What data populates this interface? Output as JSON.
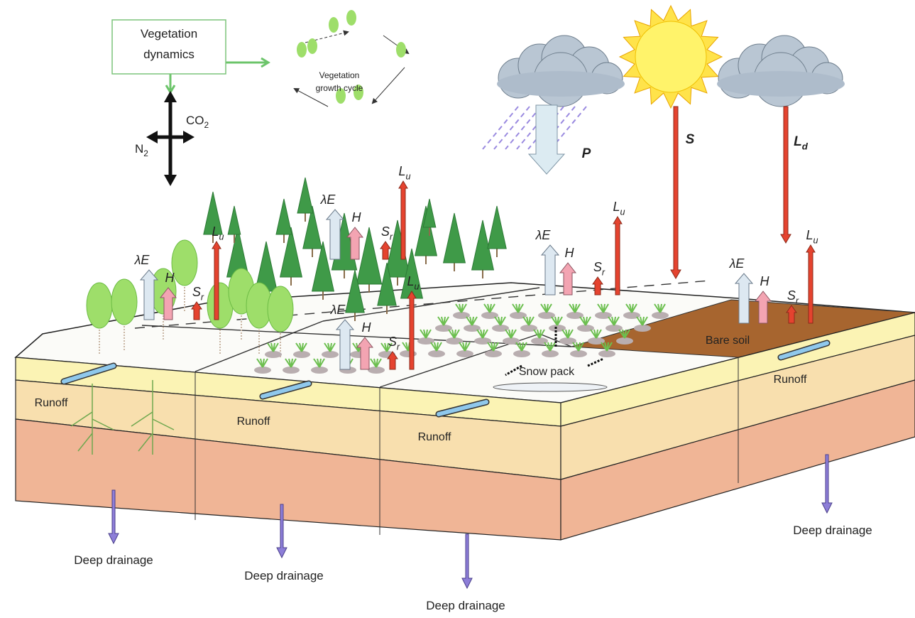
{
  "vegetation_box": {
    "lines": [
      "Vegetation",
      "dynamics"
    ]
  },
  "growth_cycle": {
    "lines": [
      "Vegetation",
      "growth cycle"
    ]
  },
  "gases": [
    {
      "base": "CO",
      "sub": "2"
    },
    {
      "base": "N",
      "sub": "2"
    }
  ],
  "atmospheric_fluxes": [
    {
      "base": "P"
    },
    {
      "base": "S"
    },
    {
      "base": "L",
      "sub": "d"
    }
  ],
  "tiles": [
    {
      "fluxes": [
        {
          "base": "λE"
        },
        {
          "base": "H"
        },
        {
          "base": "S",
          "sub": "r"
        },
        {
          "base": "L",
          "sub": "u"
        }
      ]
    },
    {
      "fluxes": [
        {
          "base": "λE"
        },
        {
          "base": "H"
        },
        {
          "base": "S",
          "sub": "r"
        },
        {
          "base": "L",
          "sub": "u"
        }
      ]
    },
    {
      "fluxes": [
        {
          "base": "λE"
        },
        {
          "base": "H"
        },
        {
          "base": "S",
          "sub": "r"
        },
        {
          "base": "L",
          "sub": "u"
        }
      ]
    },
    {
      "fluxes": [
        {
          "base": "λE"
        },
        {
          "base": "H"
        },
        {
          "base": "S",
          "sub": "r"
        },
        {
          "base": "L",
          "sub": "u"
        }
      ]
    },
    {
      "fluxes": [
        {
          "base": "λE"
        },
        {
          "base": "H"
        },
        {
          "base": "S",
          "sub": "r"
        },
        {
          "base": "L",
          "sub": "u"
        }
      ]
    }
  ],
  "surface_labels": [
    "Bare soil",
    "Snow pack"
  ],
  "runoff": [
    "Runoff",
    "Runoff",
    "Runoff",
    "Runoff"
  ],
  "deep_drainage": [
    "Deep drainage",
    "Deep drainage",
    "Deep drainage",
    "Deep drainage"
  ]
}
